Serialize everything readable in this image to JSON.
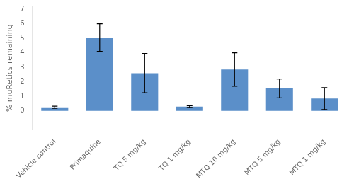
{
  "chart_data": {
    "type": "bar",
    "categories": [
      "Vehicle control",
      "Primaquine",
      "TQ 5 mg/kg",
      "TQ 1 mg/kg",
      "MTQ 10 mg/kg",
      "MTQ 5 mg/kg",
      "MTQ 1 mg/kg"
    ],
    "values": [
      0.25,
      5.05,
      2.6,
      0.3,
      2.85,
      1.55,
      0.85
    ],
    "errors": [
      0.07,
      0.95,
      1.35,
      0.06,
      1.15,
      0.65,
      0.75
    ],
    "color": "#5b8fc9",
    "ylabel": "% muRetics remaining",
    "ylim": [
      -1.3,
      7.2
    ],
    "yticks": [
      0,
      1,
      2,
      3,
      4,
      5,
      6,
      7
    ],
    "grid": false
  }
}
